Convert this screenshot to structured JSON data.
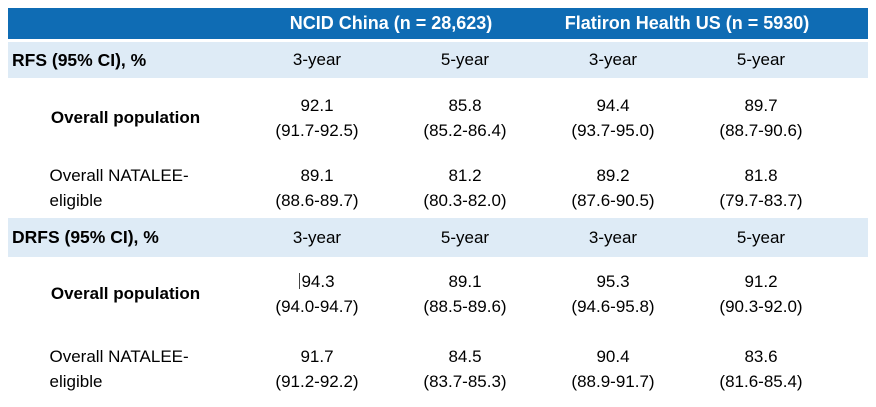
{
  "table": {
    "group_headers": [
      "NCID China (n = 28,623)",
      "Flatiron Health US (n = 5930)"
    ],
    "sections": [
      {
        "title": "RFS (95% CI), %",
        "year_headers": [
          "3-year",
          "5-year",
          "3-year",
          "5-year"
        ],
        "rows": [
          {
            "label": "Overall population",
            "cells": [
              {
                "value": "92.1",
                "ci": "(91.7-92.5)"
              },
              {
                "value": "85.8",
                "ci": "(85.2-86.4)"
              },
              {
                "value": "94.4",
                "ci": "(93.7-95.0)"
              },
              {
                "value": "89.7",
                "ci": "(88.7-90.6)"
              }
            ]
          },
          {
            "label": "Overall NATALEE-eligible",
            "cells": [
              {
                "value": "89.1",
                "ci": "(88.6-89.7)"
              },
              {
                "value": "81.2",
                "ci": "(80.3-82.0)"
              },
              {
                "value": "89.2",
                "ci": "(87.6-90.5)"
              },
              {
                "value": "81.8",
                "ci": "(79.7-83.7)"
              }
            ]
          }
        ]
      },
      {
        "title": "DRFS (95% CI), %",
        "year_headers": [
          "3-year",
          "5-year",
          "3-year",
          "5-year"
        ],
        "rows": [
          {
            "label": "Overall population",
            "cells": [
              {
                "value": "94.3",
                "ci": "(94.0-94.7)"
              },
              {
                "value": "89.1",
                "ci": "(88.5-89.6)"
              },
              {
                "value": "95.3",
                "ci": "(94.6-95.8)"
              },
              {
                "value": "91.2",
                "ci": "(90.3-92.0)"
              }
            ]
          },
          {
            "label": "Overall NATALEE-eligible",
            "cells": [
              {
                "value": "91.7",
                "ci": "(91.2-92.2)"
              },
              {
                "value": "84.5",
                "ci": "(83.7-85.3)"
              },
              {
                "value": "90.4",
                "ci": "(88.9-91.7)"
              },
              {
                "value": "83.6",
                "ci": "(81.6-85.4)"
              }
            ]
          }
        ]
      }
    ]
  },
  "colors": {
    "header_bg": "#0F6CB4",
    "header_text": "#FFFFFF",
    "subheader_bg": "#DEEBF6",
    "body_text": "#000000"
  }
}
